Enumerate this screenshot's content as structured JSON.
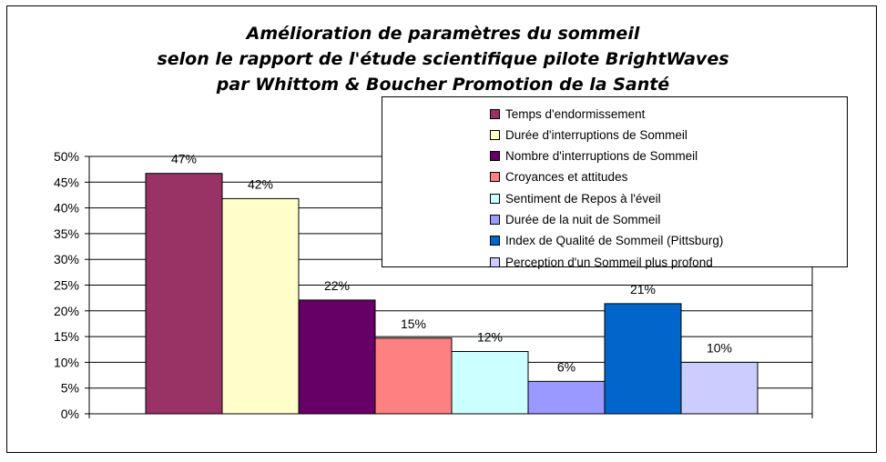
{
  "title": {
    "line1": "Amélioration de paramètres du sommeil",
    "line2": "selon le rapport de l'étude scientifique pilote BrightWaves",
    "line3": "par Whittom & Boucher Promotion de la Santé"
  },
  "chart_data": {
    "type": "bar",
    "ylim": [
      0,
      50
    ],
    "ytick_labels": [
      "0%",
      "5%",
      "10%",
      "15%",
      "20%",
      "25%",
      "30%",
      "35%",
      "40%",
      "45%",
      "50%"
    ],
    "grid": true,
    "legend_position": "top-right",
    "series": [
      {
        "name": "Temps d'endormissement",
        "value": 46.7,
        "label": "47%",
        "color": "#993366"
      },
      {
        "name": "Durée d'interruptions de Sommeil",
        "value": 41.8,
        "label": "42%",
        "color": "#FFFFCC"
      },
      {
        "name": "Nombre d'interruptions de Sommeil",
        "value": 22.1,
        "label": "22%",
        "color": "#660066"
      },
      {
        "name": "Croyances et attitudes",
        "value": 14.7,
        "label": "15%",
        "color": "#FF8080"
      },
      {
        "name": "Sentiment de Repos à l'éveil",
        "value": 12.1,
        "label": "12%",
        "color": "#CCFFFF"
      },
      {
        "name": "Durée de la nuit de Sommeil",
        "value": 6.3,
        "label": "6%",
        "color": "#9999FF"
      },
      {
        "name": "Index de Qualité de Sommeil (Pittsburg)",
        "value": 21.4,
        "label": "21%",
        "color": "#0066CC"
      },
      {
        "name": "Perception d'un Sommeil plus profond",
        "value": 10.0,
        "label": "10%",
        "color": "#CCCCFF"
      }
    ]
  }
}
